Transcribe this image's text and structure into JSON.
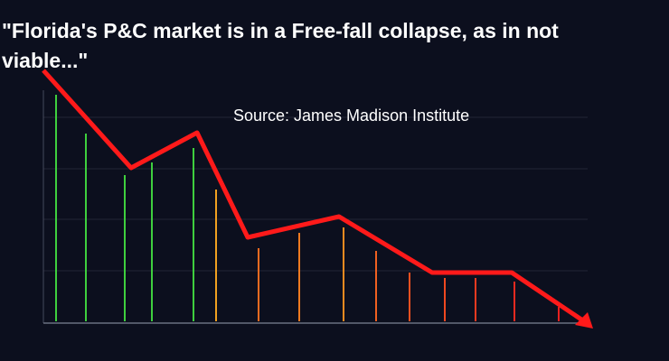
{
  "header": {
    "title": "\"Florida's P&C market is in a Free-fall collapse, as in not viable...\"",
    "source": "Source: James Madison Institute"
  }
}
